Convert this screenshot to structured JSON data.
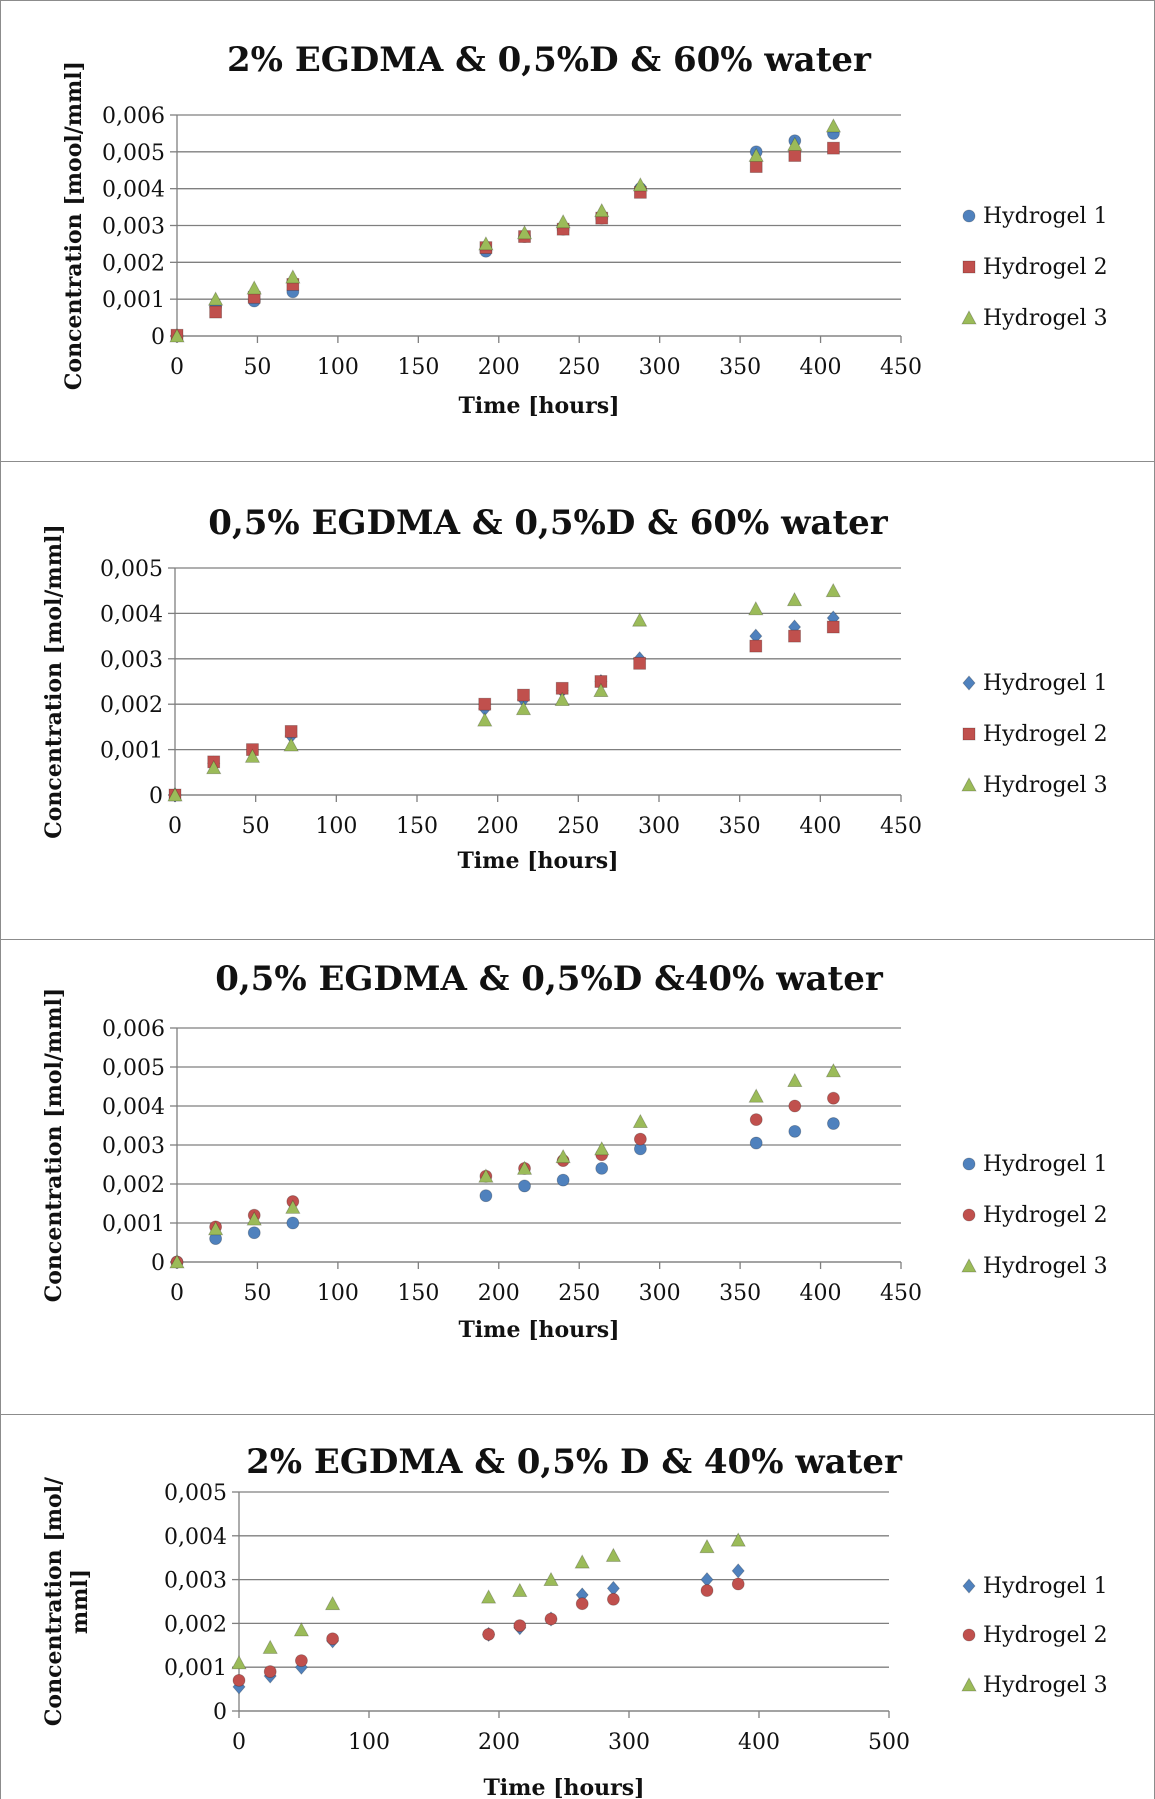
{
  "chart_data": [
    {
      "type": "scatter",
      "title": "2% EGDMA & 0,5%D & 60% water",
      "xlabel": "Time [hours]",
      "ylabel": "Concentration [mool/mml]",
      "xlim": [
        0,
        450
      ],
      "xstep": 50,
      "ylim": [
        0,
        0.006
      ],
      "ystep": 0.001,
      "ytick_labels": [
        "0",
        "0,001",
        "0,002",
        "0,003",
        "0,004",
        "0,005",
        "0,006"
      ],
      "xtick_labels": [
        "0",
        "50",
        "100",
        "150",
        "200",
        "250",
        "300",
        "350",
        "400",
        "450"
      ],
      "grid": true,
      "legend": "right",
      "x": [
        0,
        24,
        48,
        72,
        192,
        216,
        240,
        264,
        288,
        360,
        384,
        408
      ],
      "series": [
        {
          "name": "Hydrogel 1",
          "marker": "circle",
          "color": "#4f81bd",
          "values": [
            0.0,
            0.0008,
            0.00095,
            0.0012,
            0.0023,
            0.0027,
            0.0029,
            0.0032,
            0.004,
            0.005,
            0.0053,
            0.0055
          ]
        },
        {
          "name": "Hydrogel 2",
          "marker": "square",
          "color": "#c0504d",
          "values": [
            2e-05,
            0.00065,
            0.00105,
            0.0014,
            0.0024,
            0.0027,
            0.0029,
            0.0032,
            0.0039,
            0.0046,
            0.0049,
            0.0051
          ]
        },
        {
          "name": "Hydrogel 3",
          "marker": "triangle",
          "color": "#9bbb59",
          "values": [
            0.0,
            0.001,
            0.0013,
            0.0016,
            0.0025,
            0.0028,
            0.0031,
            0.0034,
            0.0041,
            0.0049,
            0.0052,
            0.0057
          ]
        }
      ]
    },
    {
      "type": "scatter",
      "title": "0,5% EGDMA & 0,5%D & 60% water",
      "xlabel": "Time [hours]",
      "ylabel": "Concentration [mol/mml]",
      "xlim": [
        0,
        450
      ],
      "xstep": 50,
      "ylim": [
        0,
        0.005
      ],
      "ystep": 0.001,
      "ytick_labels": [
        "0",
        "0,001",
        "0,002",
        "0,003",
        "0,004",
        "0,005"
      ],
      "xtick_labels": [
        "0",
        "50",
        "100",
        "150",
        "200",
        "250",
        "300",
        "350",
        "400",
        "450"
      ],
      "grid": true,
      "legend": "right",
      "x": [
        0,
        24,
        48,
        72,
        192,
        216,
        240,
        264,
        288,
        360,
        384,
        408
      ],
      "series": [
        {
          "name": "Hydrogel 1",
          "marker": "diamond",
          "color": "#4f81bd",
          "values": [
            0.0,
            0.0007,
            0.00095,
            0.0013,
            0.0019,
            0.0021,
            0.0023,
            0.0025,
            0.003,
            0.0035,
            0.0037,
            0.0039
          ]
        },
        {
          "name": "Hydrogel 2",
          "marker": "square",
          "color": "#c0504d",
          "values": [
            0.0,
            0.00073,
            0.001,
            0.0014,
            0.002,
            0.0022,
            0.00235,
            0.0025,
            0.0029,
            0.00328,
            0.0035,
            0.0037
          ]
        },
        {
          "name": "Hydrogel 3",
          "marker": "triangle",
          "color": "#9bbb59",
          "values": [
            0.0,
            0.0006,
            0.00085,
            0.0011,
            0.00165,
            0.0019,
            0.0021,
            0.0023,
            0.00385,
            0.0041,
            0.0043,
            0.0045
          ]
        }
      ]
    },
    {
      "type": "scatter",
      "title": "0,5% EGDMA & 0,5%D &40% water",
      "xlabel": "Time [hours]",
      "ylabel": "Concentration [mol/mml]",
      "xlim": [
        0,
        450
      ],
      "xstep": 50,
      "ylim": [
        0,
        0.006
      ],
      "ystep": 0.001,
      "ytick_labels": [
        "0",
        "0,001",
        "0,002",
        "0,003",
        "0,004",
        "0,005",
        "0,006"
      ],
      "xtick_labels": [
        "0",
        "50",
        "100",
        "150",
        "200",
        "250",
        "300",
        "350",
        "400",
        "450"
      ],
      "grid": true,
      "legend": "right",
      "x": [
        0,
        24,
        48,
        72,
        192,
        216,
        240,
        264,
        288,
        360,
        384,
        408
      ],
      "series": [
        {
          "name": "Hydrogel 1",
          "marker": "circle",
          "color": "#4f81bd",
          "values": [
            0.0,
            0.0006,
            0.00075,
            0.001,
            0.0017,
            0.00195,
            0.0021,
            0.0024,
            0.0029,
            0.00305,
            0.00335,
            0.00355
          ]
        },
        {
          "name": "Hydrogel 2",
          "marker": "circle",
          "color": "#c0504d",
          "values": [
            0.0,
            0.0009,
            0.0012,
            0.00155,
            0.0022,
            0.0024,
            0.0026,
            0.00275,
            0.00315,
            0.00365,
            0.004,
            0.0042
          ]
        },
        {
          "name": "Hydrogel 3",
          "marker": "triangle",
          "color": "#9bbb59",
          "values": [
            0.0,
            0.00085,
            0.0011,
            0.0014,
            0.0022,
            0.0024,
            0.0027,
            0.0029,
            0.0036,
            0.00425,
            0.00465,
            0.0049
          ]
        }
      ]
    },
    {
      "type": "scatter",
      "title": "2% EGDMA & 0,5% D & 40% water",
      "xlabel": "Time [hours]",
      "ylabel": "Concentration [mol/ mml]",
      "xlim": [
        0,
        500
      ],
      "xstep": 100,
      "ylim": [
        0,
        0.005
      ],
      "ystep": 0.001,
      "ytick_labels": [
        "0",
        "0,001",
        "0,002",
        "0,003",
        "0,004",
        "0,005"
      ],
      "xtick_labels": [
        "0",
        "100",
        "200",
        "300",
        "400",
        "500"
      ],
      "grid": true,
      "legend": "right",
      "x": [
        0,
        24,
        48,
        72,
        192,
        216,
        240,
        264,
        288,
        360,
        384
      ],
      "series": [
        {
          "name": "Hydrogel 1",
          "marker": "diamond",
          "color": "#4f81bd",
          "values": [
            0.00055,
            0.0008,
            0.001,
            0.0016,
            0.00175,
            0.0019,
            0.0021,
            0.00265,
            0.0028,
            0.003,
            0.0032
          ]
        },
        {
          "name": "Hydrogel 2",
          "marker": "circle",
          "color": "#c0504d",
          "values": [
            0.0007,
            0.0009,
            0.00115,
            0.00165,
            0.00175,
            0.00195,
            0.0021,
            0.00245,
            0.00255,
            0.00275,
            0.0029
          ]
        },
        {
          "name": "Hydrogel 3",
          "marker": "triangle",
          "color": "#9bbb59",
          "values": [
            0.0011,
            0.00145,
            0.00185,
            0.00245,
            0.0026,
            0.00275,
            0.003,
            0.0034,
            0.00355,
            0.00375,
            0.0039
          ]
        }
      ]
    }
  ]
}
